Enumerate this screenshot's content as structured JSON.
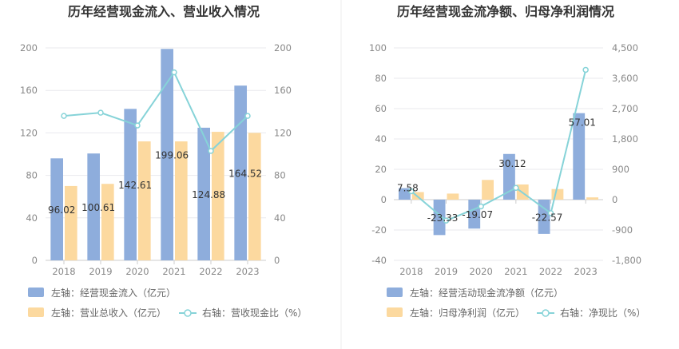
{
  "chart_data": [
    {
      "type": "bar",
      "title": "历年经营现金流入、营业收入情况",
      "categories": [
        "2018",
        "2019",
        "2020",
        "2021",
        "2022",
        "2023"
      ],
      "y_left": {
        "min": 0,
        "max": 200,
        "ticks": [
          "0",
          "40",
          "80",
          "120",
          "160",
          "200"
        ]
      },
      "y_right": {
        "min": 0,
        "max": 200,
        "ticks": [
          "0",
          "40",
          "80",
          "120",
          "160",
          "200"
        ]
      },
      "series": [
        {
          "name": "左轴：经营现金流入（亿元）",
          "type": "bar",
          "axis": "left",
          "color": "#8eaddc",
          "values": [
            96.02,
            100.61,
            142.61,
            199.06,
            124.88,
            164.52
          ],
          "labels": [
            "96.02",
            "100.61",
            "142.61",
            "199.06",
            "124.88",
            "164.52"
          ]
        },
        {
          "name": "左轴：营业总收入（亿元）",
          "type": "bar",
          "axis": "left",
          "color": "#fcd99f",
          "values": [
            70,
            72,
            112,
            112,
            121,
            120
          ]
        },
        {
          "name": "右轴：营收现金比（%）",
          "type": "line",
          "axis": "right",
          "color": "#86d3d8",
          "values": [
            136,
            139,
            127,
            177,
            103,
            136
          ]
        }
      ],
      "grid": true,
      "legend_position": "bottom-left"
    },
    {
      "type": "bar",
      "title": "历年经营现金流净额、归母净利润情况",
      "categories": [
        "2018",
        "2019",
        "2020",
        "2021",
        "2022",
        "2023"
      ],
      "y_left": {
        "min": -40,
        "max": 100,
        "ticks": [
          "-40",
          "-20",
          "0",
          "20",
          "40",
          "60",
          "80",
          "100"
        ]
      },
      "y_right": {
        "min": -1800,
        "max": 4500,
        "ticks": [
          "-1,800",
          "-900",
          "0",
          "900",
          "1,800",
          "2,700",
          "3,600",
          "4,500"
        ]
      },
      "series": [
        {
          "name": "左轴：经营活动现金流净额（亿元）",
          "type": "bar",
          "axis": "left",
          "color": "#8eaddc",
          "values": [
            7.58,
            -23.33,
            -19.07,
            30.12,
            -22.57,
            57.01
          ],
          "labels": [
            "7.58",
            "-23.33",
            "-19.07",
            "30.12",
            "-22.57",
            "57.01"
          ]
        },
        {
          "name": "左轴：归母净利润（亿元）",
          "type": "bar",
          "axis": "left",
          "color": "#fcd99f",
          "values": [
            5,
            4,
            13,
            10,
            7,
            1.5
          ]
        },
        {
          "name": "右轴：净现比（%）",
          "type": "line",
          "axis": "right",
          "color": "#86d3d8",
          "values": [
            250,
            -620,
            -200,
            350,
            -400,
            3850
          ]
        }
      ],
      "grid": true,
      "legend_position": "bottom-left"
    }
  ]
}
